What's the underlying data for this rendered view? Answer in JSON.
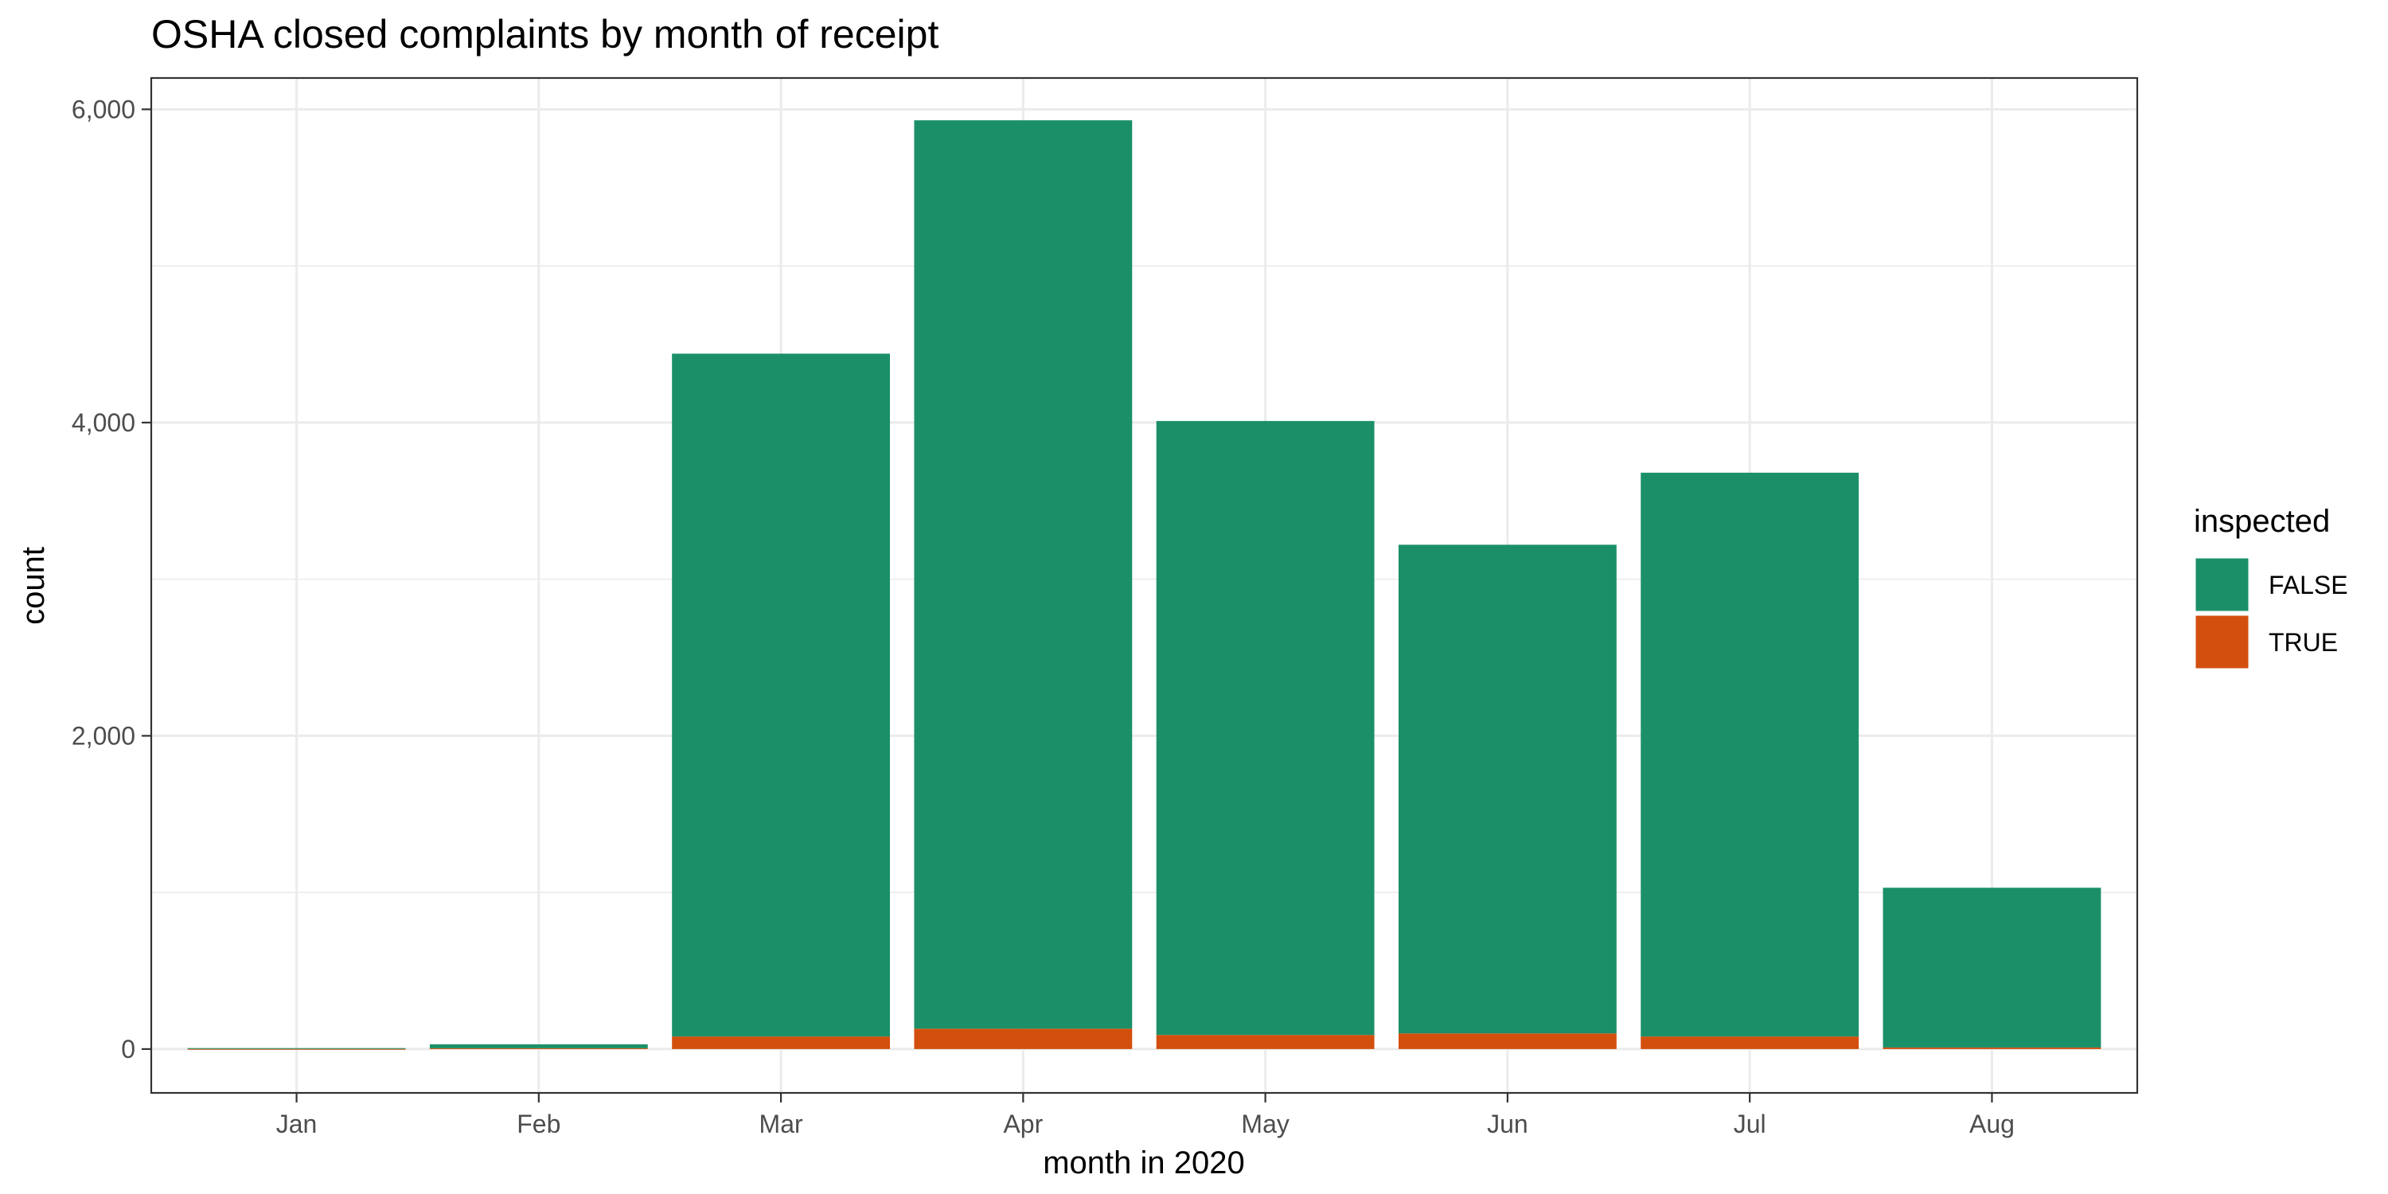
{
  "chart_data": {
    "type": "bar",
    "stacked": true,
    "title": "OSHA closed complaints by month of receipt",
    "xlabel": "month in 2020",
    "ylabel": "count",
    "categories": [
      "Jan",
      "Feb",
      "Mar",
      "Apr",
      "May",
      "Jun",
      "Jul",
      "Aug"
    ],
    "series": [
      {
        "name": "FALSE",
        "color": "#1b9068",
        "values": [
          5,
          25,
          4360,
          5800,
          3920,
          3120,
          3600,
          1020
        ]
      },
      {
        "name": "TRUE",
        "color": "#d34f0e",
        "values": [
          1,
          5,
          80,
          130,
          90,
          100,
          80,
          10
        ]
      }
    ],
    "ylim": [
      -280,
      6200
    ],
    "yticks": [
      0,
      2000,
      4000,
      6000
    ],
    "ytick_labels": [
      "0",
      "2,000",
      "4,000",
      "6,000"
    ],
    "grid": true,
    "legend": {
      "title": "inspected",
      "position": "right"
    }
  }
}
